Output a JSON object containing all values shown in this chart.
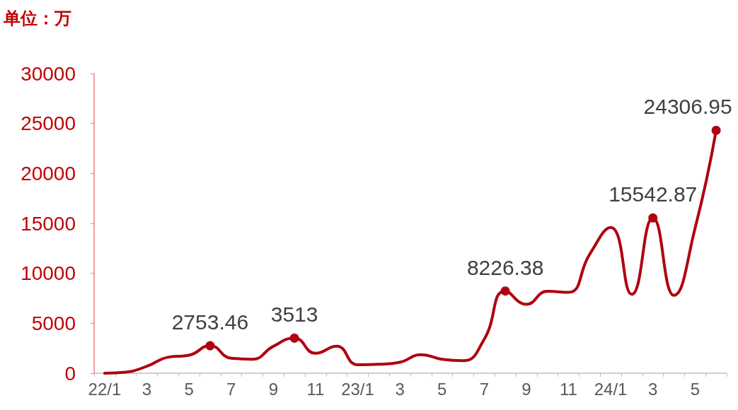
{
  "chart_data": {
    "type": "line",
    "ylabel": "单位：万",
    "categories": [
      "22/1",
      null,
      "3",
      null,
      "5",
      null,
      "7",
      null,
      "9",
      null,
      "11",
      null,
      "23/1",
      null,
      "3",
      null,
      "5",
      null,
      "7",
      null,
      "9",
      null,
      "11",
      null,
      "24/1",
      null,
      "3",
      null,
      "5",
      null
    ],
    "series": [
      {
        "color": "#b0000f",
        "values": [
          0,
          100,
          700,
          1600,
          1800,
          2753.46,
          1500,
          1400,
          2700,
          3513,
          2000,
          2700,
          850,
          900,
          1100,
          1850,
          1400,
          1250,
          3400,
          8226.38,
          6900,
          8200,
          8100,
          11900,
          14600,
          7900,
          15542.87,
          7800,
          14500,
          24306.95
        ],
        "value_labels": [
          null,
          null,
          null,
          null,
          null,
          "2753.46",
          null,
          null,
          null,
          "3513",
          null,
          null,
          null,
          null,
          null,
          null,
          null,
          null,
          null,
          "8226.38",
          null,
          null,
          null,
          null,
          null,
          null,
          "15542.87",
          null,
          null,
          "24306.95"
        ]
      }
    ],
    "ylim": [
      0,
      30000
    ],
    "yticks": [
      0,
      5000,
      10000,
      15000,
      20000,
      25000,
      30000
    ],
    "grid": false,
    "line_style": "solid"
  }
}
